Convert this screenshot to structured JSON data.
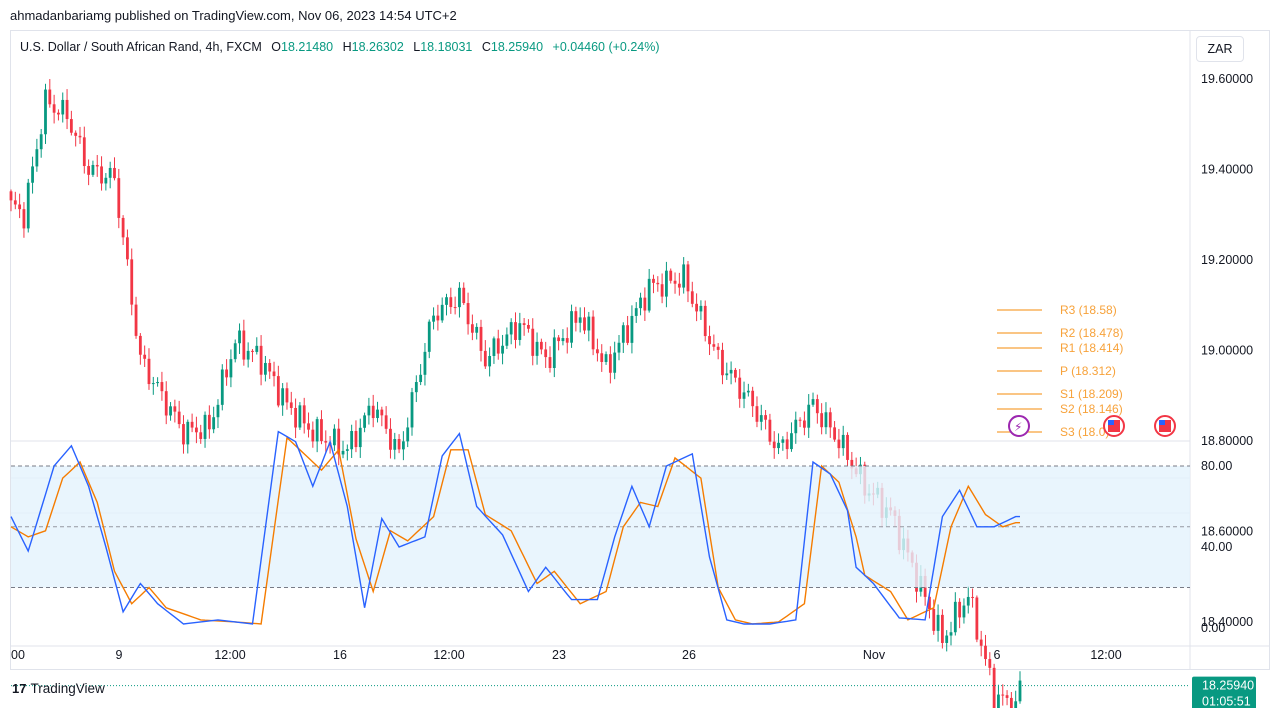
{
  "header": {
    "credit": "ahmadanbariamg published on TradingView.com, Nov 06, 2023 14:54 UTC+2"
  },
  "legend": {
    "symbol": "U.S. Dollar / South African Rand, 4h, FXCM",
    "open_label": "O",
    "open": "18.21480",
    "high_label": "H",
    "high": "18.26302",
    "low_label": "L",
    "low": "18.18031",
    "close_label": "C",
    "close": "18.25940",
    "change": "+0.04460 (+0.24%)"
  },
  "currency_button": "ZAR",
  "colors": {
    "up": "#089981",
    "down": "#f23645",
    "pivot": "#f7a23a",
    "stoch_k": "#2962ff",
    "stoch_d": "#f57c00",
    "band": "#e3f2fd"
  },
  "chart_data": [
    {
      "type": "candlestick",
      "title": "U.S. Dollar / South African Rand, 4h, FXCM",
      "ylim": [
        18.1,
        19.68
      ],
      "price_ticks": [
        "19.60000",
        "19.40000",
        "19.20000",
        "19.00000",
        "18.80000",
        "18.60000",
        "18.40000"
      ],
      "last_price": "18.25940",
      "countdown": "01:05:51",
      "x_labels": [
        "00",
        "9",
        "12:00",
        "16",
        "12:00",
        "23",
        "26",
        "Nov",
        "6",
        "12:00"
      ],
      "path_anchors": [
        [
          0,
          19.32
        ],
        [
          3,
          19.3
        ],
        [
          8,
          19.55
        ],
        [
          13,
          19.52
        ],
        [
          18,
          19.4
        ],
        [
          24,
          19.38
        ],
        [
          30,
          18.98
        ],
        [
          40,
          18.82
        ],
        [
          46,
          18.83
        ],
        [
          52,
          19.02
        ],
        [
          58,
          18.98
        ],
        [
          64,
          18.88
        ],
        [
          70,
          18.82
        ],
        [
          78,
          18.78
        ],
        [
          84,
          18.88
        ],
        [
          90,
          18.77
        ],
        [
          98,
          19.08
        ],
        [
          104,
          19.12
        ],
        [
          110,
          18.98
        ],
        [
          118,
          19.06
        ],
        [
          124,
          18.98
        ],
        [
          132,
          19.08
        ],
        [
          138,
          18.96
        ],
        [
          148,
          19.14
        ],
        [
          156,
          19.16
        ],
        [
          164,
          18.98
        ],
        [
          172,
          18.88
        ],
        [
          178,
          18.78
        ],
        [
          186,
          18.88
        ],
        [
          192,
          18.8
        ],
        [
          198,
          18.7
        ],
        [
          204,
          18.64
        ],
        [
          210,
          18.5
        ],
        [
          216,
          18.36
        ],
        [
          222,
          18.46
        ],
        [
          228,
          18.24
        ],
        [
          233,
          18.21
        ],
        [
          234,
          18.26
        ]
      ],
      "pivots": [
        {
          "label": "R3",
          "value": "18.58"
        },
        {
          "label": "R2",
          "value": "18.478"
        },
        {
          "label": "R1",
          "value": "18.414"
        },
        {
          "label": "P",
          "value": "18.312"
        },
        {
          "label": "S1",
          "value": "18.209"
        },
        {
          "label": "S2",
          "value": "18.146"
        },
        {
          "label": "S3",
          "value": "18.0"
        }
      ]
    },
    {
      "type": "line",
      "title": "Stochastic",
      "ylim": [
        0,
        100
      ],
      "band": [
        20,
        80
      ],
      "y_ticks": [
        "80.00",
        "40.00",
        "0.00"
      ],
      "k_anchors": [
        [
          0,
          55
        ],
        [
          4,
          38
        ],
        [
          6,
          52
        ],
        [
          10,
          80
        ],
        [
          14,
          90
        ],
        [
          18,
          70
        ],
        [
          22,
          40
        ],
        [
          26,
          8
        ],
        [
          30,
          22
        ],
        [
          34,
          12
        ],
        [
          40,
          2
        ],
        [
          48,
          4
        ],
        [
          56,
          2
        ],
        [
          62,
          97
        ],
        [
          66,
          92
        ],
        [
          70,
          70
        ],
        [
          74,
          92
        ],
        [
          78,
          60
        ],
        [
          82,
          10
        ],
        [
          86,
          54
        ],
        [
          90,
          40
        ],
        [
          96,
          45
        ],
        [
          100,
          85
        ],
        [
          104,
          96
        ],
        [
          108,
          60
        ],
        [
          114,
          46
        ],
        [
          120,
          18
        ],
        [
          124,
          30
        ],
        [
          130,
          14
        ],
        [
          136,
          14
        ],
        [
          140,
          45
        ],
        [
          144,
          70
        ],
        [
          148,
          50
        ],
        [
          152,
          80
        ],
        [
          158,
          86
        ],
        [
          162,
          35
        ],
        [
          166,
          4
        ],
        [
          170,
          2
        ],
        [
          176,
          2
        ],
        [
          182,
          4
        ],
        [
          186,
          82
        ],
        [
          190,
          76
        ],
        [
          194,
          58
        ],
        [
          196,
          30
        ],
        [
          200,
          22
        ],
        [
          206,
          5
        ],
        [
          212,
          4
        ],
        [
          216,
          55
        ],
        [
          220,
          68
        ],
        [
          224,
          50
        ],
        [
          228,
          50
        ],
        [
          233,
          55
        ]
      ],
      "d_anchors": [
        [
          0,
          50
        ],
        [
          4,
          45
        ],
        [
          8,
          48
        ],
        [
          12,
          74
        ],
        [
          16,
          82
        ],
        [
          20,
          62
        ],
        [
          24,
          28
        ],
        [
          28,
          12
        ],
        [
          32,
          20
        ],
        [
          36,
          10
        ],
        [
          44,
          4
        ],
        [
          52,
          3
        ],
        [
          58,
          2
        ],
        [
          64,
          94
        ],
        [
          68,
          86
        ],
        [
          72,
          78
        ],
        [
          76,
          88
        ],
        [
          80,
          44
        ],
        [
          84,
          18
        ],
        [
          88,
          48
        ],
        [
          92,
          43
        ],
        [
          98,
          55
        ],
        [
          102,
          88
        ],
        [
          106,
          88
        ],
        [
          110,
          56
        ],
        [
          116,
          48
        ],
        [
          122,
          22
        ],
        [
          126,
          28
        ],
        [
          132,
          12
        ],
        [
          138,
          18
        ],
        [
          142,
          50
        ],
        [
          146,
          62
        ],
        [
          150,
          60
        ],
        [
          154,
          84
        ],
        [
          160,
          74
        ],
        [
          164,
          20
        ],
        [
          168,
          4
        ],
        [
          172,
          2
        ],
        [
          178,
          3
        ],
        [
          184,
          12
        ],
        [
          188,
          80
        ],
        [
          192,
          72
        ],
        [
          196,
          45
        ],
        [
          198,
          26
        ],
        [
          204,
          18
        ],
        [
          208,
          4
        ],
        [
          214,
          10
        ],
        [
          218,
          50
        ],
        [
          222,
          70
        ],
        [
          226,
          56
        ],
        [
          230,
          50
        ],
        [
          233,
          52
        ]
      ]
    }
  ],
  "footer": {
    "brand_mark": "17",
    "brand": "TradingView"
  }
}
